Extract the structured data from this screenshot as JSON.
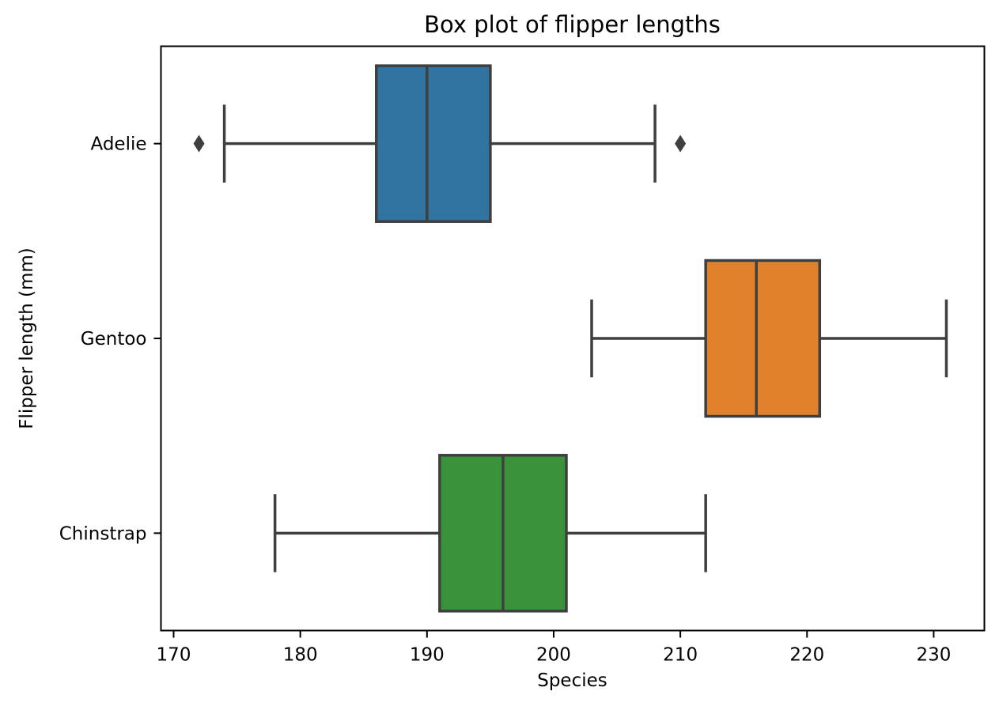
{
  "chart_data": {
    "type": "boxplot",
    "orientation": "horizontal",
    "title": "Box plot of flipper lengths",
    "xlabel": "Species",
    "ylabel": "Flipper length (mm)",
    "xlim": [
      169,
      234
    ],
    "xticks": [
      170,
      180,
      190,
      200,
      210,
      220,
      230
    ],
    "grid": false,
    "categories": [
      "Adelie",
      "Gentoo",
      "Chinstrap"
    ],
    "boxes": [
      {
        "category": "Adelie",
        "whisker_low": 174,
        "q1": 186,
        "median": 190,
        "q3": 195,
        "whisker_high": 208,
        "outliers": [
          172,
          210
        ],
        "color": "#3274a1"
      },
      {
        "category": "Gentoo",
        "whisker_low": 203,
        "q1": 212,
        "median": 216,
        "q3": 221,
        "whisker_high": 231,
        "outliers": [],
        "color": "#e1812c"
      },
      {
        "category": "Chinstrap",
        "whisker_low": 178,
        "q1": 191,
        "median": 196,
        "q3": 201,
        "whisker_high": 212,
        "outliers": [],
        "color": "#3a923a"
      }
    ],
    "line_color": "#3f3f3f"
  }
}
